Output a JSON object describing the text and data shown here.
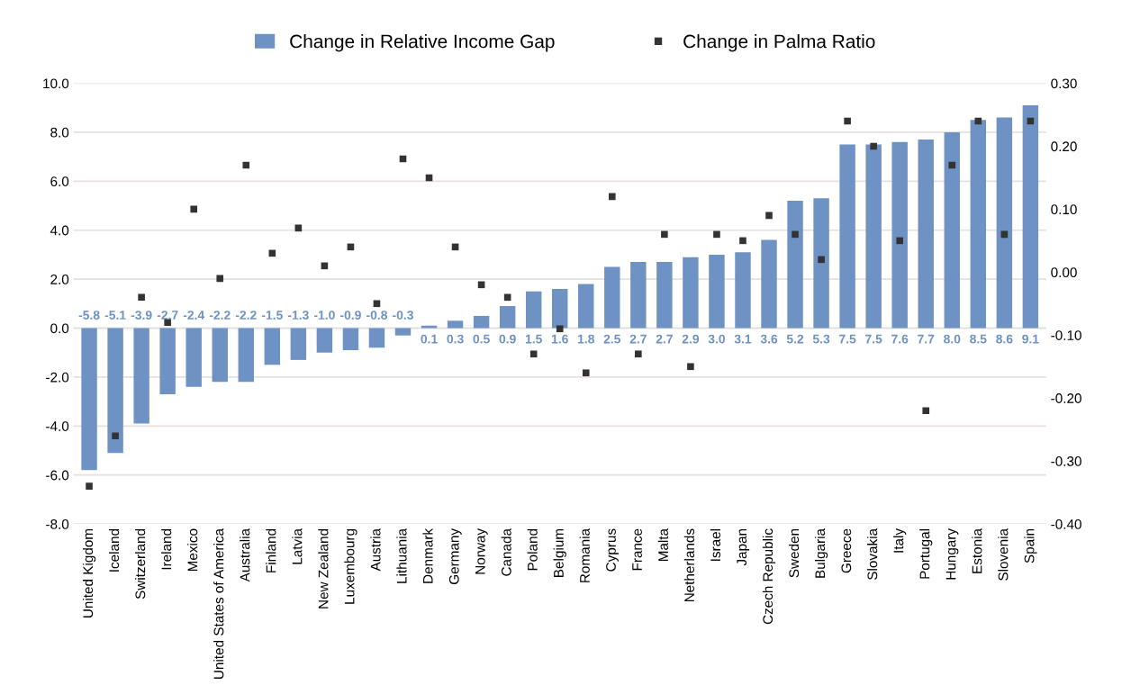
{
  "chart_data": {
    "type": "bar",
    "categories": [
      "United Kigdom",
      "Iceland",
      "Switzerland",
      "Ireland",
      "Mexico",
      "United States of America",
      "Australia",
      "Finland",
      "Latvia",
      "New Zealand",
      "Luxembourg",
      "Austria",
      "Lithuania",
      "Denmark",
      "Germany",
      "Norway",
      "Canada",
      "Poland",
      "Belgium",
      "Romania",
      "Cyprus",
      "France",
      "Malta",
      "Netherlands",
      "Israel",
      "Japan",
      "Czech Republic",
      "Sweden",
      "Bulgaria",
      "Greece",
      "Slovakia",
      "Italy",
      "Portugal",
      "Hungary",
      "Estonia",
      "Slovenia",
      "Spain"
    ],
    "series": [
      {
        "name": "Change in Relative Income Gap",
        "color": "#6d92c3",
        "values": [
          -5.8,
          -5.1,
          -3.9,
          -2.7,
          -2.4,
          -2.2,
          -2.2,
          -1.5,
          -1.3,
          -1.0,
          -0.9,
          -0.8,
          -0.3,
          0.1,
          0.3,
          0.5,
          0.9,
          1.5,
          1.6,
          1.8,
          2.5,
          2.7,
          2.7,
          2.9,
          3.0,
          3.1,
          3.6,
          5.2,
          5.3,
          7.5,
          7.5,
          7.6,
          7.7,
          8.0,
          8.5,
          8.6,
          9.1
        ],
        "value_labels": [
          "-5.8",
          "-5.1",
          "-3.9",
          "-2.7",
          "-2.4",
          "-2.2",
          "-2.2",
          "-1.5",
          "-1.3",
          "-1.0",
          "-0.9",
          "-0.8",
          "-0.3",
          "0.1",
          "0.3",
          "0.5",
          "0.9",
          "1.5",
          "1.6",
          "1.8",
          "2.5",
          "2.7",
          "2.7",
          "2.9",
          "3.0",
          "3.1",
          "3.6",
          "5.2",
          "5.3",
          "7.5",
          "7.5",
          "7.6",
          "7.7",
          "8.0",
          "8.5",
          "8.6",
          "9.1"
        ]
      },
      {
        "name": "Change in Palma Ratio",
        "type": "scatter",
        "axis": "y2",
        "color": "#333333",
        "marker": "square",
        "values": [
          -0.34,
          -0.26,
          -0.04,
          -0.08,
          0.1,
          -0.01,
          0.17,
          0.03,
          0.07,
          0.01,
          0.04,
          -0.05,
          0.18,
          0.15,
          0.04,
          -0.02,
          -0.04,
          -0.13,
          -0.09,
          -0.16,
          0.12,
          -0.13,
          0.06,
          -0.15,
          0.06,
          0.05,
          0.09,
          0.06,
          0.02,
          0.24,
          0.2,
          0.05,
          -0.22,
          0.17,
          0.24,
          0.06,
          0.24
        ]
      }
    ],
    "ylim": [
      -8,
      10
    ],
    "yticks": [
      {
        "value": -8,
        "label": "-8.0"
      },
      {
        "value": -6,
        "label": "-6.0"
      },
      {
        "value": -4,
        "label": "-4.0"
      },
      {
        "value": -2,
        "label": "-2.0"
      },
      {
        "value": 0,
        "label": "0.0"
      },
      {
        "value": 2,
        "label": "2.0"
      },
      {
        "value": 4,
        "label": "4.0"
      },
      {
        "value": 6,
        "label": "6.0"
      },
      {
        "value": 8,
        "label": "8.0"
      },
      {
        "value": 10,
        "label": "10.0"
      }
    ],
    "y2lim": [
      -0.4,
      0.3
    ],
    "y2ticks": [
      {
        "value": -0.4,
        "label": "-0.40"
      },
      {
        "value": -0.3,
        "label": "-0.30"
      },
      {
        "value": -0.2,
        "label": "-0.20"
      },
      {
        "value": -0.1,
        "label": "-0.10"
      },
      {
        "value": 0,
        "label": "0.00"
      },
      {
        "value": 0.1,
        "label": "0.10"
      },
      {
        "value": 0.2,
        "label": "0.20"
      },
      {
        "value": 0.3,
        "label": "0.30"
      }
    ],
    "grid": "y",
    "legend": "top"
  }
}
